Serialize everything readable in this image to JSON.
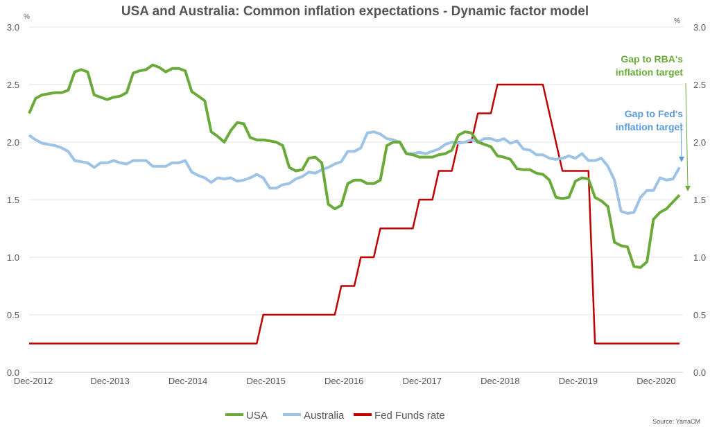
{
  "chart_data": {
    "type": "line",
    "title": "USA and Australia: Common inflation expectations - Dynamic factor model",
    "left_unit": "%",
    "right_unit": "%",
    "source": "Source: YarraCM",
    "x_start": "2012-12",
    "x_frequency": "monthly",
    "x_tick_labels": [
      "Dec-2012",
      "Dec-2013",
      "Dec-2014",
      "Dec-2015",
      "Dec-2016",
      "Dec-2017",
      "Dec-2018",
      "Dec-2019",
      "Dec-2020"
    ],
    "y_tick_labels": [
      "0.0",
      "0.5",
      "1.0",
      "1.5",
      "2.0",
      "2.5",
      "3.0"
    ],
    "ylim": [
      0,
      3.0
    ],
    "grid": true,
    "legend_position": "bottom",
    "series": [
      {
        "name": "USA",
        "color": "#6aaa3a",
        "values": [
          2.25,
          2.38,
          2.41,
          2.42,
          2.43,
          2.43,
          2.45,
          2.61,
          2.63,
          2.61,
          2.41,
          2.39,
          2.37,
          2.39,
          2.4,
          2.43,
          2.6,
          2.62,
          2.63,
          2.67,
          2.65,
          2.61,
          2.64,
          2.64,
          2.62,
          2.44,
          2.4,
          2.36,
          2.09,
          2.05,
          2.0,
          2.1,
          2.17,
          2.16,
          2.04,
          2.02,
          2.02,
          2.01,
          2.0,
          1.97,
          1.78,
          1.75,
          1.76,
          1.86,
          1.87,
          1.82,
          1.46,
          1.42,
          1.45,
          1.64,
          1.67,
          1.67,
          1.64,
          1.64,
          1.67,
          1.97,
          2.0,
          2.0,
          1.9,
          1.89,
          1.87,
          1.87,
          1.87,
          1.89,
          1.9,
          1.93,
          2.06,
          2.09,
          2.08,
          2.0,
          1.98,
          1.96,
          1.88,
          1.87,
          1.85,
          1.77,
          1.76,
          1.76,
          1.73,
          1.72,
          1.67,
          1.52,
          1.51,
          1.52,
          1.66,
          1.69,
          1.68,
          1.52,
          1.49,
          1.44,
          1.13,
          1.1,
          1.09,
          0.92,
          0.91,
          0.96,
          1.33,
          1.39,
          1.42,
          1.48,
          1.54
        ]
      },
      {
        "name": "Australia",
        "color": "#9dc3e6",
        "values": [
          2.06,
          2.02,
          1.99,
          1.98,
          1.97,
          1.95,
          1.92,
          1.84,
          1.83,
          1.82,
          1.78,
          1.82,
          1.82,
          1.84,
          1.82,
          1.81,
          1.84,
          1.84,
          1.84,
          1.79,
          1.79,
          1.79,
          1.82,
          1.82,
          1.84,
          1.74,
          1.71,
          1.69,
          1.65,
          1.69,
          1.68,
          1.69,
          1.66,
          1.67,
          1.69,
          1.72,
          1.69,
          1.6,
          1.6,
          1.63,
          1.64,
          1.68,
          1.7,
          1.74,
          1.73,
          1.76,
          1.78,
          1.81,
          1.83,
          1.92,
          1.92,
          1.95,
          2.08,
          2.09,
          2.07,
          2.03,
          2.02,
          2.0,
          1.9,
          1.9,
          1.91,
          1.9,
          1.92,
          1.94,
          1.98,
          2.0,
          1.99,
          2.0,
          2.02,
          2.0,
          2.03,
          2.03,
          2.01,
          2.03,
          1.99,
          2.01,
          1.94,
          1.93,
          1.89,
          1.89,
          1.86,
          1.85,
          1.86,
          1.88,
          1.86,
          1.9,
          1.84,
          1.84,
          1.86,
          1.79,
          1.67,
          1.4,
          1.38,
          1.39,
          1.52,
          1.58,
          1.58,
          1.69,
          1.67,
          1.68,
          1.78
        ]
      },
      {
        "name": "Fed Funds rate",
        "color": "#c00000",
        "values": [
          0.25,
          0.25,
          0.25,
          0.25,
          0.25,
          0.25,
          0.25,
          0.25,
          0.25,
          0.25,
          0.25,
          0.25,
          0.25,
          0.25,
          0.25,
          0.25,
          0.25,
          0.25,
          0.25,
          0.25,
          0.25,
          0.25,
          0.25,
          0.25,
          0.25,
          0.25,
          0.25,
          0.25,
          0.25,
          0.25,
          0.25,
          0.25,
          0.25,
          0.25,
          0.25,
          0.25,
          0.5,
          0.5,
          0.5,
          0.5,
          0.5,
          0.5,
          0.5,
          0.5,
          0.5,
          0.5,
          0.5,
          0.5,
          0.75,
          0.75,
          0.75,
          1.0,
          1.0,
          1.0,
          1.25,
          1.25,
          1.25,
          1.25,
          1.25,
          1.25,
          1.5,
          1.5,
          1.5,
          1.75,
          1.75,
          1.75,
          2.0,
          2.0,
          2.0,
          2.25,
          2.25,
          2.25,
          2.5,
          2.5,
          2.5,
          2.5,
          2.5,
          2.5,
          2.5,
          2.5,
          2.25,
          2.0,
          1.75,
          1.75,
          1.75,
          1.75,
          1.75,
          0.25,
          0.25,
          0.25,
          0.25,
          0.25,
          0.25,
          0.25,
          0.25,
          0.25,
          0.25,
          0.25,
          0.25,
          0.25,
          0.25
        ]
      }
    ],
    "annotations": [
      {
        "lines": [
          "Gap to RBA's",
          "inflation target"
        ],
        "color": "#6aaa3a"
      },
      {
        "lines": [
          "Gap to Fed's",
          "inflation target"
        ],
        "color": "#5b9bd5"
      }
    ]
  }
}
